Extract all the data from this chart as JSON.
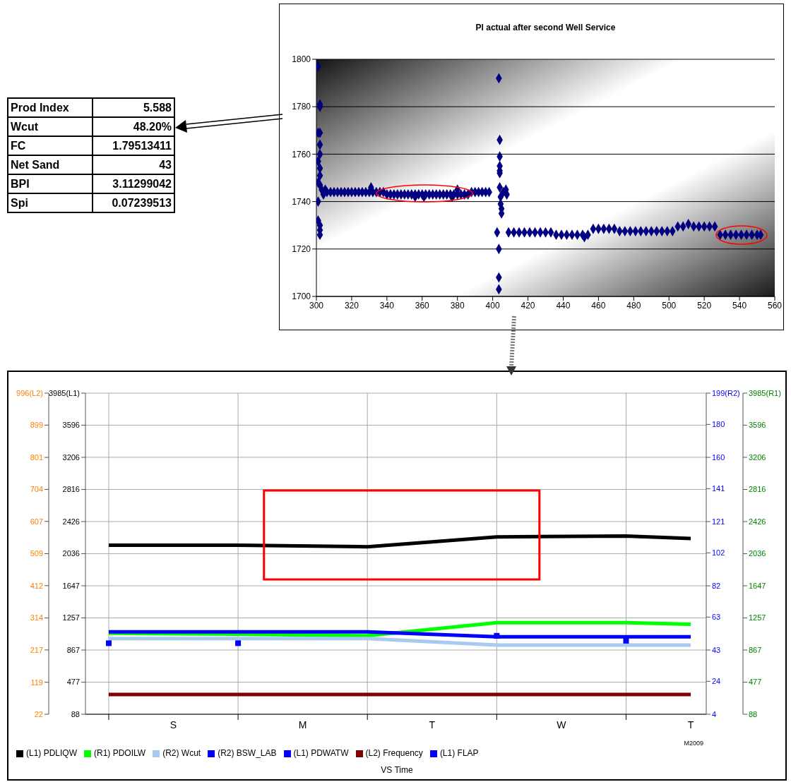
{
  "chart_data": [
    {
      "type": "other",
      "annotations": [
        "Prod Index",
        "5.588",
        "Wcut",
        "48.20%",
        "FC",
        "1.79513411",
        "Net Sand",
        "43",
        "BPI",
        "3.11299042",
        "Spi",
        "0.07239513"
      ]
    },
    {
      "type": "scatter",
      "title": "PI actual after second Well Service",
      "xlim": [
        300,
        560
      ],
      "xticks": [
        300,
        320,
        340,
        360,
        380,
        400,
        420,
        440,
        460,
        480,
        500,
        520,
        540,
        560
      ],
      "ylim": [
        1700,
        1800
      ],
      "yticks": [
        1700,
        1720,
        1740,
        1760,
        1780,
        1800
      ],
      "grid": "y",
      "marker": "diamond",
      "legend": false,
      "series": [
        {
          "color": "#000080",
          "x": [
            301,
            302,
            302,
            301,
            302,
            302,
            302,
            301,
            302,
            302,
            301,
            302,
            301,
            301,
            302,
            302,
            302,
            303,
            304,
            305,
            306,
            308,
            310,
            312,
            314,
            316,
            318,
            320,
            322,
            324,
            326,
            328,
            330,
            332,
            334,
            336,
            338,
            340,
            342,
            344,
            346,
            348,
            350,
            352,
            354,
            356,
            358,
            360,
            362,
            364,
            366,
            368,
            370,
            372,
            374,
            376,
            378,
            380,
            382,
            384,
            386,
            388,
            390,
            392,
            394,
            396,
            398,
            331,
            356,
            361,
            377,
            380,
            402.5,
            403.5,
            403.5,
            403.5,
            403.5,
            404,
            404,
            404,
            404,
            404,
            404,
            404.5,
            404.5,
            405,
            405,
            406,
            407.5,
            408,
            409,
            412,
            415,
            418,
            421,
            424,
            427,
            430,
            433,
            436,
            439,
            442,
            445,
            448,
            451,
            454,
            452,
            457,
            460,
            463,
            466,
            469,
            472,
            475,
            478,
            481,
            484,
            487,
            490,
            493,
            496,
            499,
            502,
            505,
            508,
            511,
            514,
            517,
            520,
            523,
            526,
            529,
            532,
            535,
            538,
            541,
            544,
            547,
            550,
            552
          ],
          "values": [
            1797,
            1781,
            1780,
            1769,
            1769,
            1764,
            1760,
            1757,
            1754,
            1751,
            1748,
            1747,
            1740,
            1732,
            1730,
            1728,
            1726,
            1745,
            1743,
            1745,
            1744,
            1744,
            1744,
            1744,
            1744,
            1744,
            1744,
            1744,
            1744,
            1744,
            1744,
            1744,
            1744,
            1744,
            1744,
            1744,
            1744,
            1743,
            1743,
            1743,
            1743,
            1743,
            1743,
            1743,
            1743,
            1743,
            1743,
            1743,
            1743,
            1743,
            1743,
            1743,
            1743,
            1743,
            1743,
            1743,
            1743,
            1743,
            1743,
            1743,
            1743,
            1744,
            1744,
            1744,
            1744,
            1744,
            1744,
            1746,
            1742,
            1742,
            1742,
            1745,
            1727,
            1720,
            1708,
            1703,
            1792,
            1766,
            1759,
            1755,
            1753,
            1752,
            1746,
            1742,
            1739,
            1737,
            1735,
            1744,
            1745,
            1743,
            1727,
            1727,
            1727,
            1727,
            1727,
            1727,
            1727,
            1727,
            1727,
            1726,
            1726,
            1726,
            1726,
            1726,
            1726,
            1726,
            1725,
            1728.5,
            1728.5,
            1728.5,
            1728.5,
            1728.5,
            1727.5,
            1727.5,
            1727.5,
            1727.5,
            1727.5,
            1727.5,
            1727.5,
            1727.5,
            1727.5,
            1727.5,
            1727.5,
            1729.5,
            1729.5,
            1730.5,
            1729.5,
            1729.5,
            1729.5,
            1729.5,
            1729.5,
            1726,
            1726,
            1726,
            1726,
            1726,
            1726,
            1726,
            1726,
            1726
          ]
        }
      ]
    },
    {
      "type": "line",
      "xlabel": "VS Time",
      "annotations": [
        "M2009",
        "3985(R1)",
        "3596",
        "3206",
        "2816",
        "2426",
        "2036",
        "1647",
        "1257",
        "867",
        "477",
        "88"
      ],
      "categories": [
        null,
        "S",
        null,
        "M",
        null,
        "T",
        null,
        "W",
        null,
        "T"
      ],
      "ylim": [
        88,
        3985
      ],
      "yticks": [
        88,
        477,
        867,
        1257,
        1647,
        2036,
        2426,
        2816,
        3206,
        3596,
        {
          "value": 3985,
          "label": "3985(L1)"
        }
      ],
      "y2lim": [
        4,
        199
      ],
      "y2ticks": [
        4,
        24,
        43,
        63,
        82,
        102,
        121,
        141,
        160,
        180,
        {
          "value": 199,
          "label": "199(R2)"
        }
      ],
      "y3lim": [
        22,
        996
      ],
      "y3ticks": [
        22,
        119,
        217,
        314,
        412,
        509,
        607,
        704,
        801,
        899,
        {
          "value": 996,
          "label": "996(L2)"
        }
      ],
      "grid": true,
      "legend": "bottom left",
      "marker": "none",
      "line_style": "solid",
      "series": [
        {
          "name": "(L1) PDLIQW",
          "color": "#000000",
          "values": [
            2140,
            null,
            2140,
            null,
            2120,
            null,
            2240,
            null,
            2250,
            2220
          ]
        },
        {
          "name": "(R1) PDOILW",
          "color": "#00ff00",
          "values": [
            1070,
            null,
            1060,
            null,
            1040,
            null,
            1200,
            null,
            1200,
            1180
          ]
        },
        {
          "name": "(R2) Wcut",
          "color": "#a6caf0",
          "axis": "y2",
          "values": [
            50,
            null,
            50,
            null,
            50,
            null,
            46,
            null,
            46,
            46
          ]
        },
        {
          "name": "(R2) BSW_LAB",
          "color": "#0000ff",
          "axis": "y2",
          "values": [
            54,
            null,
            54,
            null,
            54,
            null,
            51,
            null,
            51,
            51
          ]
        },
        {
          "name": "(L1) PDWATW",
          "color": "#0000ff",
          "type": "scatter",
          "marker": "square",
          "values": [
            950,
            null,
            950,
            null,
            null,
            null,
            1040,
            null,
            980,
            null
          ]
        },
        {
          "name": "(L2) Frequency",
          "color": "#800000",
          "axis": "y3",
          "values": [
            82,
            null,
            82,
            null,
            82,
            null,
            82,
            null,
            82,
            82
          ]
        },
        {
          "name": "(L1) FLAP",
          "color": "#0000ff",
          "values": [
            null,
            null,
            null,
            null,
            null,
            null,
            null,
            null,
            null,
            null
          ]
        }
      ]
    }
  ]
}
